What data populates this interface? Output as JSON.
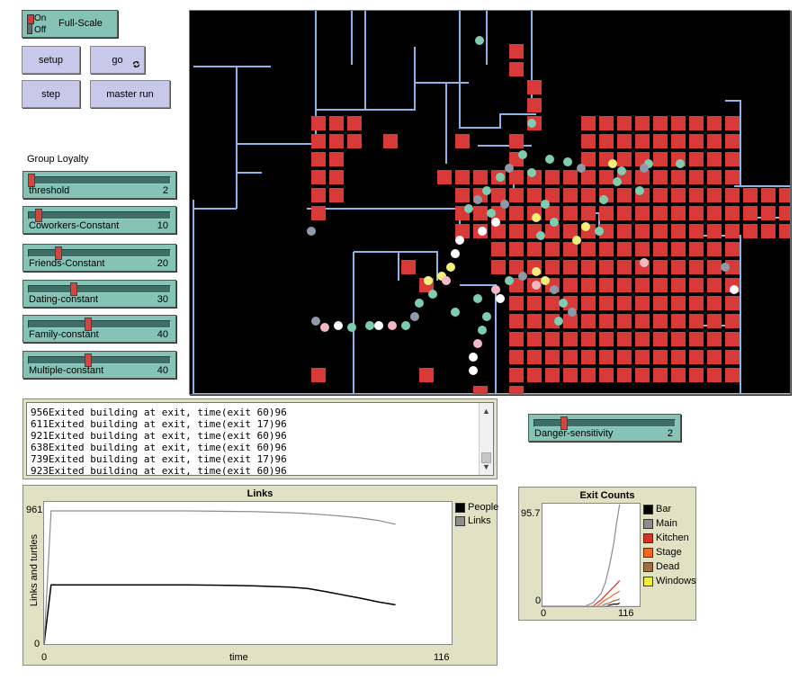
{
  "switch": {
    "on": "On",
    "off": "Off",
    "label": "Full-Scale"
  },
  "buttons": {
    "setup": "setup",
    "go": "go",
    "go_icon": "forever-icon",
    "step": "step",
    "master_run": "master run"
  },
  "group_loyalty_label": "Group Loyalty",
  "sliders": [
    {
      "label": "threshold",
      "value": "2",
      "pos": 0.0
    },
    {
      "label": "Coworkers-Constant",
      "value": "10",
      "pos": 0.05
    },
    {
      "label": "Friends-Constant",
      "value": "20",
      "pos": 0.2
    },
    {
      "label": "Dating-constant",
      "value": "30",
      "pos": 0.31
    },
    {
      "label": "Family-constant",
      "value": "40",
      "pos": 0.42
    },
    {
      "label": "Multiple-constant",
      "value": "40",
      "pos": 0.42
    }
  ],
  "danger": {
    "label": "Danger-sensitivity",
    "value": "2",
    "pos": 0.2
  },
  "output_lines": [
    "956Exited building at exit, time(exit 60)96",
    "611Exited building at exit, time(exit 17)96",
    "921Exited building at exit, time(exit 60)96",
    "638Exited building at exit, time(exit 60)96",
    "739Exited building at exit, time(exit 17)96",
    "923Exited building at exit, time(exit 60)96"
  ],
  "links_plot": {
    "title": "Links",
    "ymax_label": "961",
    "ymin_label": "0",
    "xmin_label": "0",
    "xmax_label": "116",
    "xlabel": "time",
    "ylabel": "Links and turtles",
    "legend": [
      {
        "name": "People",
        "color": "#000000"
      },
      {
        "name": "Links",
        "color": "#8d8d8d"
      }
    ]
  },
  "exit_plot": {
    "title": "Exit Counts",
    "ymax_label": "95.7",
    "ymin_label": "0",
    "xmin_label": "0",
    "xmax_label": "116",
    "legend": [
      {
        "name": "Bar",
        "color": "#000000"
      },
      {
        "name": "Main",
        "color": "#8d8d8d"
      },
      {
        "name": "Kitchen",
        "color": "#d73229"
      },
      {
        "name": "Stage",
        "color": "#f1681f"
      },
      {
        "name": "Dead",
        "color": "#9d6e48"
      },
      {
        "name": "Windows",
        "color": "#eeee3a"
      }
    ]
  },
  "chart_data": [
    {
      "type": "line",
      "title": "Links",
      "xlabel": "time",
      "ylabel": "Links and turtles",
      "xlim": [
        0,
        116
      ],
      "ylim": [
        0,
        961
      ],
      "series": [
        {
          "name": "People",
          "x": [
            0,
            2,
            10,
            20,
            30,
            40,
            50,
            60,
            70,
            75,
            80,
            85,
            90,
            95,
            100
          ],
          "y": [
            0,
            400,
            400,
            400,
            400,
            400,
            398,
            393,
            385,
            375,
            355,
            333,
            310,
            285,
            265
          ]
        },
        {
          "name": "Links",
          "x": [
            0,
            2,
            10,
            20,
            30,
            40,
            50,
            60,
            70,
            75,
            80,
            85,
            90,
            95,
            100
          ],
          "y": [
            0,
            900,
            900,
            900,
            900,
            900,
            898,
            895,
            888,
            882,
            874,
            864,
            852,
            836,
            810
          ]
        }
      ]
    },
    {
      "type": "line",
      "title": "Exit Counts",
      "xlim": [
        0,
        116
      ],
      "ylim": [
        0,
        95.7
      ],
      "series": [
        {
          "name": "Main",
          "x": [
            0,
            50,
            60,
            70,
            75,
            80,
            85,
            88,
            92
          ],
          "y": [
            0,
            0,
            3,
            12,
            22,
            38,
            58,
            75,
            95
          ]
        },
        {
          "name": "Kitchen",
          "x": [
            0,
            60,
            65,
            70,
            75,
            80,
            85,
            90,
            92
          ],
          "y": [
            0,
            0,
            3,
            6,
            10,
            14,
            18,
            22,
            24
          ]
        },
        {
          "name": "Stage",
          "x": [
            0,
            65,
            70,
            75,
            80,
            85,
            90,
            92
          ],
          "y": [
            0,
            0,
            3,
            6,
            8,
            11,
            13,
            14
          ]
        },
        {
          "name": "Dead",
          "x": [
            0,
            70,
            75,
            80,
            85,
            90,
            92
          ],
          "y": [
            0,
            0,
            2,
            3,
            5,
            6,
            7
          ]
        },
        {
          "name": "Bar",
          "x": [
            0,
            75,
            80,
            85,
            90,
            92
          ],
          "y": [
            0,
            0,
            1,
            2,
            2,
            3
          ]
        },
        {
          "name": "Windows",
          "x": [
            0,
            116
          ],
          "y": [
            0,
            0
          ]
        }
      ]
    }
  ]
}
